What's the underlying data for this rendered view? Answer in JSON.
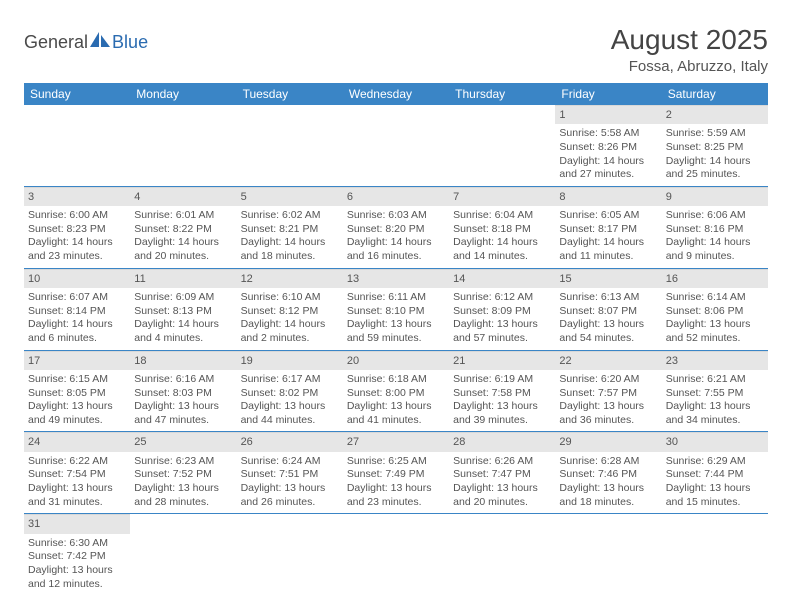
{
  "logo": {
    "text1": "General",
    "text2": "Blue",
    "brand_color": "#2a6bb0"
  },
  "header": {
    "title": "August 2025",
    "location": "Fossa, Abruzzo, Italy"
  },
  "colors": {
    "header_bg": "#3a85c6",
    "daynum_bg": "#e6e6e6",
    "row_border": "#3a85c6"
  },
  "weekdays": [
    "Sunday",
    "Monday",
    "Tuesday",
    "Wednesday",
    "Thursday",
    "Friday",
    "Saturday"
  ],
  "weeks": [
    [
      null,
      null,
      null,
      null,
      null,
      {
        "n": "1",
        "sr": "Sunrise: 5:58 AM",
        "ss": "Sunset: 8:26 PM",
        "dl": "Daylight: 14 hours and 27 minutes."
      },
      {
        "n": "2",
        "sr": "Sunrise: 5:59 AM",
        "ss": "Sunset: 8:25 PM",
        "dl": "Daylight: 14 hours and 25 minutes."
      }
    ],
    [
      {
        "n": "3",
        "sr": "Sunrise: 6:00 AM",
        "ss": "Sunset: 8:23 PM",
        "dl": "Daylight: 14 hours and 23 minutes."
      },
      {
        "n": "4",
        "sr": "Sunrise: 6:01 AM",
        "ss": "Sunset: 8:22 PM",
        "dl": "Daylight: 14 hours and 20 minutes."
      },
      {
        "n": "5",
        "sr": "Sunrise: 6:02 AM",
        "ss": "Sunset: 8:21 PM",
        "dl": "Daylight: 14 hours and 18 minutes."
      },
      {
        "n": "6",
        "sr": "Sunrise: 6:03 AM",
        "ss": "Sunset: 8:20 PM",
        "dl": "Daylight: 14 hours and 16 minutes."
      },
      {
        "n": "7",
        "sr": "Sunrise: 6:04 AM",
        "ss": "Sunset: 8:18 PM",
        "dl": "Daylight: 14 hours and 14 minutes."
      },
      {
        "n": "8",
        "sr": "Sunrise: 6:05 AM",
        "ss": "Sunset: 8:17 PM",
        "dl": "Daylight: 14 hours and 11 minutes."
      },
      {
        "n": "9",
        "sr": "Sunrise: 6:06 AM",
        "ss": "Sunset: 8:16 PM",
        "dl": "Daylight: 14 hours and 9 minutes."
      }
    ],
    [
      {
        "n": "10",
        "sr": "Sunrise: 6:07 AM",
        "ss": "Sunset: 8:14 PM",
        "dl": "Daylight: 14 hours and 6 minutes."
      },
      {
        "n": "11",
        "sr": "Sunrise: 6:09 AM",
        "ss": "Sunset: 8:13 PM",
        "dl": "Daylight: 14 hours and 4 minutes."
      },
      {
        "n": "12",
        "sr": "Sunrise: 6:10 AM",
        "ss": "Sunset: 8:12 PM",
        "dl": "Daylight: 14 hours and 2 minutes."
      },
      {
        "n": "13",
        "sr": "Sunrise: 6:11 AM",
        "ss": "Sunset: 8:10 PM",
        "dl": "Daylight: 13 hours and 59 minutes."
      },
      {
        "n": "14",
        "sr": "Sunrise: 6:12 AM",
        "ss": "Sunset: 8:09 PM",
        "dl": "Daylight: 13 hours and 57 minutes."
      },
      {
        "n": "15",
        "sr": "Sunrise: 6:13 AM",
        "ss": "Sunset: 8:07 PM",
        "dl": "Daylight: 13 hours and 54 minutes."
      },
      {
        "n": "16",
        "sr": "Sunrise: 6:14 AM",
        "ss": "Sunset: 8:06 PM",
        "dl": "Daylight: 13 hours and 52 minutes."
      }
    ],
    [
      {
        "n": "17",
        "sr": "Sunrise: 6:15 AM",
        "ss": "Sunset: 8:05 PM",
        "dl": "Daylight: 13 hours and 49 minutes."
      },
      {
        "n": "18",
        "sr": "Sunrise: 6:16 AM",
        "ss": "Sunset: 8:03 PM",
        "dl": "Daylight: 13 hours and 47 minutes."
      },
      {
        "n": "19",
        "sr": "Sunrise: 6:17 AM",
        "ss": "Sunset: 8:02 PM",
        "dl": "Daylight: 13 hours and 44 minutes."
      },
      {
        "n": "20",
        "sr": "Sunrise: 6:18 AM",
        "ss": "Sunset: 8:00 PM",
        "dl": "Daylight: 13 hours and 41 minutes."
      },
      {
        "n": "21",
        "sr": "Sunrise: 6:19 AM",
        "ss": "Sunset: 7:58 PM",
        "dl": "Daylight: 13 hours and 39 minutes."
      },
      {
        "n": "22",
        "sr": "Sunrise: 6:20 AM",
        "ss": "Sunset: 7:57 PM",
        "dl": "Daylight: 13 hours and 36 minutes."
      },
      {
        "n": "23",
        "sr": "Sunrise: 6:21 AM",
        "ss": "Sunset: 7:55 PM",
        "dl": "Daylight: 13 hours and 34 minutes."
      }
    ],
    [
      {
        "n": "24",
        "sr": "Sunrise: 6:22 AM",
        "ss": "Sunset: 7:54 PM",
        "dl": "Daylight: 13 hours and 31 minutes."
      },
      {
        "n": "25",
        "sr": "Sunrise: 6:23 AM",
        "ss": "Sunset: 7:52 PM",
        "dl": "Daylight: 13 hours and 28 minutes."
      },
      {
        "n": "26",
        "sr": "Sunrise: 6:24 AM",
        "ss": "Sunset: 7:51 PM",
        "dl": "Daylight: 13 hours and 26 minutes."
      },
      {
        "n": "27",
        "sr": "Sunrise: 6:25 AM",
        "ss": "Sunset: 7:49 PM",
        "dl": "Daylight: 13 hours and 23 minutes."
      },
      {
        "n": "28",
        "sr": "Sunrise: 6:26 AM",
        "ss": "Sunset: 7:47 PM",
        "dl": "Daylight: 13 hours and 20 minutes."
      },
      {
        "n": "29",
        "sr": "Sunrise: 6:28 AM",
        "ss": "Sunset: 7:46 PM",
        "dl": "Daylight: 13 hours and 18 minutes."
      },
      {
        "n": "30",
        "sr": "Sunrise: 6:29 AM",
        "ss": "Sunset: 7:44 PM",
        "dl": "Daylight: 13 hours and 15 minutes."
      }
    ],
    [
      {
        "n": "31",
        "sr": "Sunrise: 6:30 AM",
        "ss": "Sunset: 7:42 PM",
        "dl": "Daylight: 13 hours and 12 minutes."
      },
      null,
      null,
      null,
      null,
      null,
      null
    ]
  ]
}
